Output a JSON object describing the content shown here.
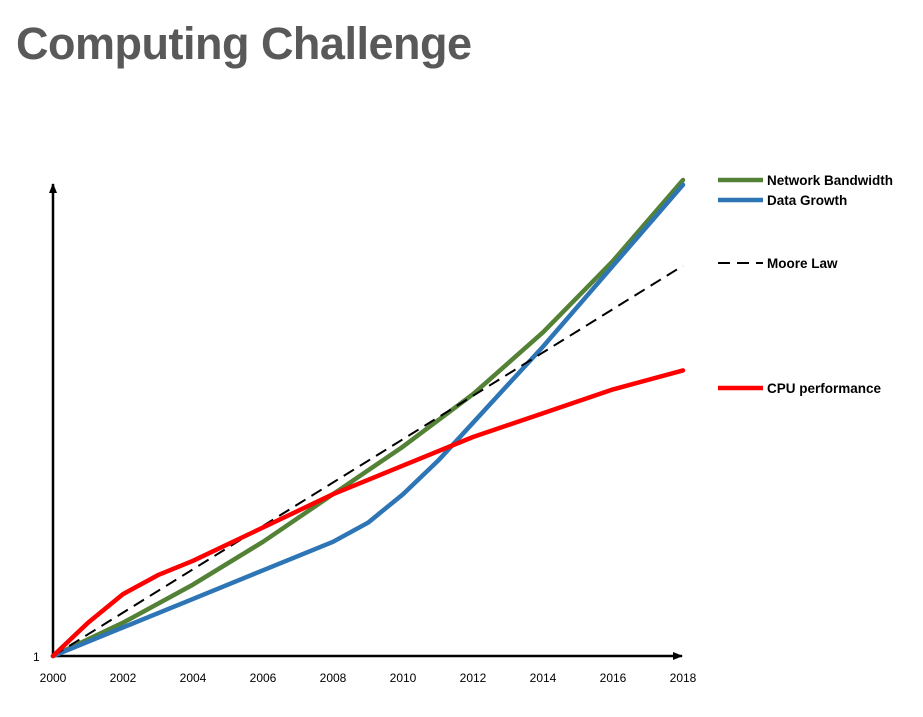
{
  "title": "Computing Challenge",
  "chart_data": {
    "type": "line",
    "x_ticks": [
      "2000",
      "2002",
      "2004",
      "2006",
      "2008",
      "2010",
      "2012",
      "2014",
      "2016",
      "2018"
    ],
    "y_tick_label": "1",
    "xlim": [
      2000,
      2018
    ],
    "ylim": [
      0,
      100
    ],
    "grid": false,
    "legend_position": "right",
    "series": [
      {
        "name": "Network Bandwidth",
        "color": "#538135",
        "style": "solid",
        "x": [
          2000,
          2002,
          2004,
          2006,
          2008,
          2010,
          2012,
          2014,
          2016,
          2018
        ],
        "y": [
          0,
          7,
          15,
          24,
          34,
          44,
          55,
          68,
          83,
          100
        ]
      },
      {
        "name": "Data Growth",
        "color": "#2E75B6",
        "style": "solid",
        "x": [
          2000,
          2002,
          2004,
          2006,
          2008,
          2009,
          2010,
          2011,
          2012,
          2013,
          2014,
          2016,
          2018
        ],
        "y": [
          0,
          6,
          12,
          18,
          24,
          28,
          34,
          41,
          49,
          57,
          65,
          82,
          99
        ]
      },
      {
        "name": "Moore Law",
        "color": "#000000",
        "style": "dashed",
        "x": [
          2000,
          2018
        ],
        "y": [
          0,
          82
        ]
      },
      {
        "name": "CPU performance",
        "color": "#FF0000",
        "style": "solid",
        "x": [
          2000,
          2001,
          2002,
          2003,
          2004,
          2006,
          2008,
          2010,
          2012,
          2014,
          2016,
          2018
        ],
        "y": [
          0,
          7,
          13,
          17,
          20,
          27,
          34,
          40,
          46,
          51,
          56,
          60
        ]
      }
    ]
  }
}
